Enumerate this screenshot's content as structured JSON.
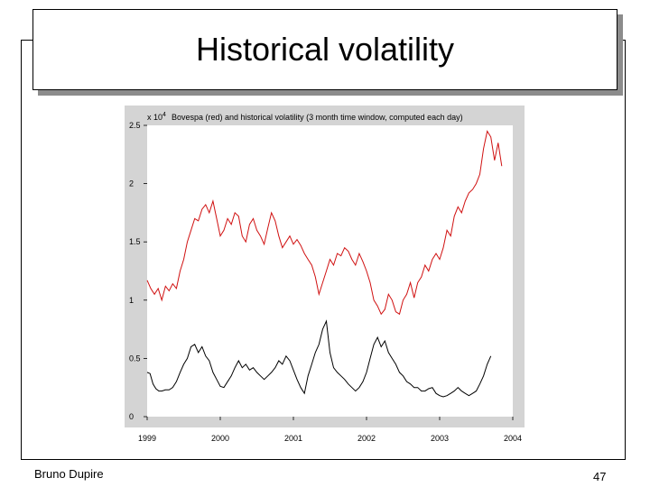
{
  "slide": {
    "title": "Historical volatility",
    "author": "Bruno Dupire",
    "page_number": "47"
  },
  "colors": {
    "bovespa": "#d01010",
    "volatility": "#000000",
    "panel_background": "#d4d4d4",
    "plot_background": "#ffffff"
  },
  "chart_data": {
    "type": "line",
    "title": "Bovespa (red) and historical volatility (3 month time window, computed each day)",
    "y_multiplier": "x 10",
    "y_multiplier_exponent": "4",
    "xlabel": "",
    "ylabel": "",
    "ylim": [
      0,
      2.5
    ],
    "yticks": [
      0,
      0.5,
      1,
      1.5,
      2,
      2.5
    ],
    "ytick_labels": [
      "0",
      "0.5",
      "1",
      "1.5",
      "2",
      "2.5"
    ],
    "xlim": [
      1999.0,
      2004.0
    ],
    "xticks": [
      1999,
      2000,
      2001,
      2002,
      2003,
      2004
    ],
    "xtick_labels": [
      "1999",
      "2000",
      "2001",
      "2002",
      "2003",
      "2004"
    ],
    "grid": false,
    "series": [
      {
        "key": "bovespa",
        "x": [
          1999.0,
          1999.05,
          1999.1,
          1999.15,
          1999.2,
          1999.25,
          1999.3,
          1999.35,
          1999.4,
          1999.45,
          1999.5,
          1999.55,
          1999.6,
          1999.65,
          1999.7,
          1999.75,
          1999.8,
          1999.85,
          1999.9,
          1999.95,
          2000.0,
          2000.05,
          2000.1,
          2000.15,
          2000.2,
          2000.25,
          2000.3,
          2000.35,
          2000.4,
          2000.45,
          2000.5,
          2000.55,
          2000.6,
          2000.65,
          2000.7,
          2000.75,
          2000.8,
          2000.85,
          2000.9,
          2000.95,
          2001.0,
          2001.05,
          2001.1,
          2001.15,
          2001.2,
          2001.25,
          2001.3,
          2001.35,
          2001.4,
          2001.45,
          2001.5,
          2001.55,
          2001.6,
          2001.65,
          2001.7,
          2001.75,
          2001.8,
          2001.85,
          2001.9,
          2001.95,
          2002.0,
          2002.05,
          2002.1,
          2002.15,
          2002.2,
          2002.25,
          2002.3,
          2002.35,
          2002.4,
          2002.45,
          2002.5,
          2002.55,
          2002.6,
          2002.65,
          2002.7,
          2002.75,
          2002.8,
          2002.85,
          2002.9,
          2002.95,
          2003.0,
          2003.05,
          2003.1,
          2003.15,
          2003.2,
          2003.25,
          2003.3,
          2003.35,
          2003.4,
          2003.45,
          2003.5,
          2003.55,
          2003.6,
          2003.65,
          2003.7,
          2003.75,
          2003.8,
          2003.85
        ],
        "y": [
          1.17,
          1.1,
          1.05,
          1.1,
          1.0,
          1.12,
          1.08,
          1.14,
          1.1,
          1.25,
          1.35,
          1.5,
          1.6,
          1.7,
          1.68,
          1.78,
          1.82,
          1.75,
          1.85,
          1.7,
          1.55,
          1.6,
          1.7,
          1.65,
          1.75,
          1.72,
          1.55,
          1.5,
          1.65,
          1.7,
          1.6,
          1.55,
          1.48,
          1.62,
          1.75,
          1.68,
          1.55,
          1.45,
          1.5,
          1.55,
          1.48,
          1.52,
          1.47,
          1.4,
          1.35,
          1.3,
          1.2,
          1.05,
          1.15,
          1.25,
          1.35,
          1.3,
          1.4,
          1.38,
          1.45,
          1.42,
          1.35,
          1.3,
          1.4,
          1.33,
          1.25,
          1.15,
          1.0,
          0.95,
          0.88,
          0.92,
          1.05,
          1.0,
          0.9,
          0.88,
          1.0,
          1.05,
          1.15,
          1.02,
          1.15,
          1.2,
          1.3,
          1.25,
          1.35,
          1.4,
          1.35,
          1.45,
          1.6,
          1.55,
          1.72,
          1.8,
          1.75,
          1.85,
          1.92,
          1.95,
          2.0,
          2.08,
          2.3,
          2.45,
          2.4,
          2.2,
          2.35,
          2.15
        ]
      },
      {
        "key": "volatility",
        "x": [
          1999.0,
          1999.04,
          1999.08,
          1999.12,
          1999.16,
          1999.2,
          1999.25,
          1999.3,
          1999.35,
          1999.4,
          1999.45,
          1999.5,
          1999.55,
          1999.6,
          1999.65,
          1999.7,
          1999.75,
          1999.8,
          1999.85,
          1999.9,
          1999.95,
          2000.0,
          2000.05,
          2000.1,
          2000.15,
          2000.2,
          2000.25,
          2000.3,
          2000.35,
          2000.4,
          2000.45,
          2000.5,
          2000.55,
          2000.6,
          2000.65,
          2000.7,
          2000.75,
          2000.8,
          2000.85,
          2000.9,
          2000.95,
          2001.0,
          2001.05,
          2001.1,
          2001.15,
          2001.2,
          2001.25,
          2001.3,
          2001.35,
          2001.4,
          2001.45,
          2001.5,
          2001.55,
          2001.6,
          2001.65,
          2001.7,
          2001.75,
          2001.8,
          2001.85,
          2001.9,
          2001.95,
          2002.0,
          2002.05,
          2002.1,
          2002.15,
          2002.2,
          2002.25,
          2002.3,
          2002.35,
          2002.4,
          2002.45,
          2002.5,
          2002.55,
          2002.6,
          2002.65,
          2002.7,
          2002.75,
          2002.8,
          2002.85,
          2002.9,
          2002.95,
          2003.0,
          2003.05,
          2003.1,
          2003.15,
          2003.2,
          2003.25,
          2003.3,
          2003.35,
          2003.4,
          2003.45,
          2003.5,
          2003.55,
          2003.6,
          2003.65,
          2003.7
        ],
        "y": [
          0.38,
          0.37,
          0.28,
          0.24,
          0.22,
          0.22,
          0.23,
          0.23,
          0.25,
          0.3,
          0.38,
          0.45,
          0.5,
          0.6,
          0.62,
          0.55,
          0.6,
          0.52,
          0.48,
          0.38,
          0.32,
          0.26,
          0.25,
          0.3,
          0.35,
          0.42,
          0.48,
          0.42,
          0.45,
          0.4,
          0.42,
          0.38,
          0.35,
          0.32,
          0.35,
          0.38,
          0.42,
          0.48,
          0.45,
          0.52,
          0.48,
          0.4,
          0.32,
          0.25,
          0.2,
          0.35,
          0.45,
          0.55,
          0.62,
          0.75,
          0.82,
          0.55,
          0.42,
          0.38,
          0.35,
          0.32,
          0.28,
          0.25,
          0.22,
          0.25,
          0.3,
          0.38,
          0.5,
          0.62,
          0.68,
          0.6,
          0.65,
          0.55,
          0.5,
          0.45,
          0.38,
          0.35,
          0.3,
          0.28,
          0.25,
          0.25,
          0.22,
          0.22,
          0.24,
          0.25,
          0.2,
          0.18,
          0.17,
          0.18,
          0.2,
          0.22,
          0.25,
          0.22,
          0.2,
          0.18,
          0.2,
          0.22,
          0.28,
          0.35,
          0.45,
          0.52
        ]
      }
    ]
  }
}
